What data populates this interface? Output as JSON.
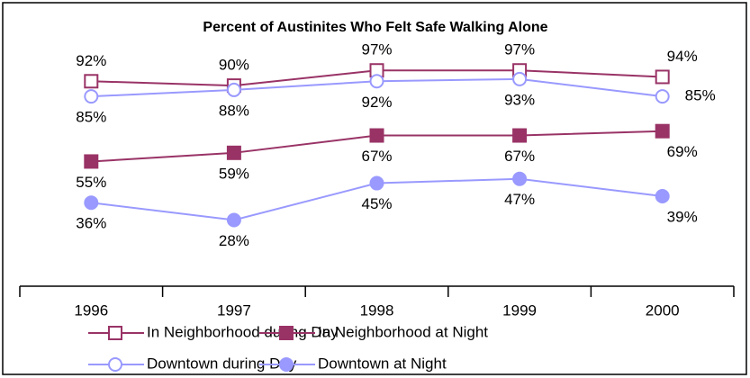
{
  "chart_data": {
    "type": "line",
    "title": "Percent of Austinites Who Felt Safe Walking Alone",
    "categories": [
      "1996",
      "1997",
      "1998",
      "1999",
      "2000"
    ],
    "ylim": [
      0,
      100
    ],
    "series": [
      {
        "name": "In Neighborhood during Day",
        "color": "#993366",
        "marker": "square",
        "filled": false,
        "values": [
          92,
          90,
          97,
          97,
          94
        ],
        "value_labels": [
          "92%",
          "90%",
          "97%",
          "97%",
          "94%"
        ]
      },
      {
        "name": "In Neighborhood at Night",
        "color": "#993366",
        "marker": "square",
        "filled": true,
        "values": [
          55,
          59,
          67,
          67,
          69
        ],
        "value_labels": [
          "55%",
          "59%",
          "67%",
          "67%",
          "69%"
        ]
      },
      {
        "name": "Downtown during Day",
        "color": "#9999ff",
        "marker": "circle",
        "filled": false,
        "values": [
          85,
          88,
          92,
          93,
          85
        ],
        "value_labels": [
          "85%",
          "88%",
          "92%",
          "93%",
          "85%"
        ]
      },
      {
        "name": "Downtown at Night",
        "color": "#9999ff",
        "marker": "circle",
        "filled": true,
        "values": [
          36,
          28,
          45,
          47,
          39
        ],
        "value_labels": [
          "36%",
          "28%",
          "45%",
          "47%",
          "39%"
        ]
      }
    ]
  }
}
